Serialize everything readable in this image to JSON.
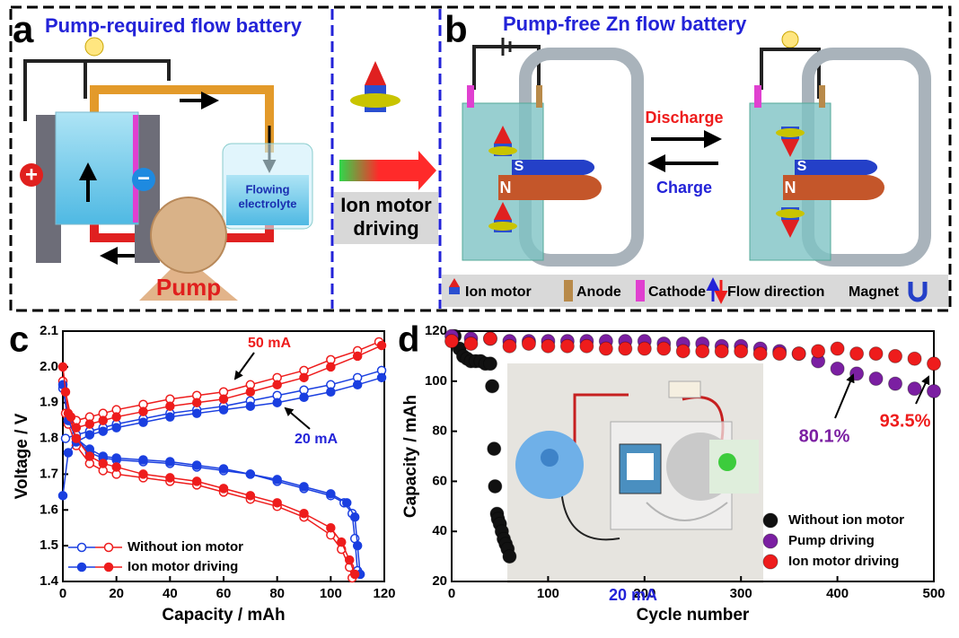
{
  "panel_a": {
    "label": "a",
    "title": "Pump-required flow battery",
    "electrolyte": [
      "Flowing",
      "electrolyte"
    ],
    "pump": "Pump",
    "plus": "+",
    "minus": "−"
  },
  "middle": {
    "lines": [
      "Ion motor",
      "driving"
    ]
  },
  "panel_b": {
    "label": "b",
    "title": "Pump-free Zn flow battery",
    "discharge": "Discharge",
    "charge": "Charge",
    "south": "S",
    "north": "N",
    "legend": [
      "Ion motor",
      "Anode",
      "Cathode",
      "Flow direction",
      "Magnet"
    ]
  },
  "chart_data": [
    {
      "type": "line",
      "panel": "c",
      "xlabel": "Capacity / mAh",
      "ylabel": "Voltage / V",
      "xlim": [
        0,
        120
      ],
      "xticks": [
        0,
        20,
        40,
        60,
        80,
        100,
        120
      ],
      "ylim": [
        1.4,
        2.1
      ],
      "yticks": [
        1.4,
        1.5,
        1.6,
        1.7,
        1.8,
        1.9,
        {
          "value": 2,
          "label": "2.0"
        },
        2.1
      ],
      "annotations": [
        "50 mA",
        "20 mA"
      ],
      "legend": "lower left",
      "series": [
        {
          "name": "Without ion motor",
          "marker": "open",
          "curves": [
            {
              "color": "#1a3fe0",
              "x": [
                1,
                5,
                10,
                15,
                20,
                30,
                40,
                50,
                60,
                70,
                80,
                90,
                100,
                110,
                119
              ],
              "values": [
                1.8,
                1.81,
                1.82,
                1.83,
                1.84,
                1.855,
                1.87,
                1.88,
                1.89,
                1.905,
                1.92,
                1.935,
                1.95,
                1.97,
                1.99
              ]
            },
            {
              "color": "#1a3fe0",
              "x": [
                0,
                2,
                5,
                10,
                15,
                20,
                30,
                40,
                50,
                60,
                70,
                80,
                90,
                100,
                105,
                108,
                109,
                110
              ],
              "values": [
                1.94,
                1.85,
                1.8,
                1.76,
                1.745,
                1.74,
                1.735,
                1.73,
                1.72,
                1.71,
                1.7,
                1.68,
                1.66,
                1.64,
                1.62,
                1.59,
                1.52,
                1.43
              ]
            },
            {
              "color": "#ee1c1c",
              "x": [
                1,
                5,
                10,
                15,
                20,
                30,
                40,
                50,
                60,
                70,
                80,
                90,
                100,
                110,
                118
              ],
              "values": [
                1.87,
                1.85,
                1.86,
                1.87,
                1.88,
                1.895,
                1.91,
                1.92,
                1.93,
                1.95,
                1.97,
                1.99,
                2.02,
                2.045,
                2.07
              ]
            },
            {
              "color": "#ee1c1c",
              "x": [
                0,
                2,
                5,
                10,
                15,
                20,
                30,
                40,
                50,
                60,
                70,
                80,
                90,
                100,
                104,
                107,
                108
              ],
              "values": [
                1.96,
                1.84,
                1.78,
                1.73,
                1.71,
                1.7,
                1.69,
                1.68,
                1.67,
                1.65,
                1.63,
                1.61,
                1.58,
                1.53,
                1.49,
                1.44,
                1.41
              ]
            }
          ]
        },
        {
          "name": "Ion motor driving",
          "marker": "filled",
          "curves": [
            {
              "color": "#1a3fe0",
              "x": [
                0,
                2,
                5,
                10,
                15,
                20,
                30,
                40,
                50,
                60,
                70,
                80,
                90,
                100,
                110,
                119
              ],
              "values": [
                1.64,
                1.76,
                1.79,
                1.81,
                1.82,
                1.83,
                1.845,
                1.86,
                1.87,
                1.88,
                1.89,
                1.9,
                1.915,
                1.93,
                1.95,
                1.97
              ]
            },
            {
              "color": "#1a3fe0",
              "x": [
                0,
                2,
                5,
                10,
                15,
                20,
                30,
                40,
                50,
                60,
                70,
                80,
                90,
                100,
                106,
                109,
                110,
                111
              ],
              "values": [
                1.95,
                1.85,
                1.8,
                1.77,
                1.75,
                1.745,
                1.74,
                1.735,
                1.725,
                1.715,
                1.7,
                1.685,
                1.665,
                1.645,
                1.62,
                1.58,
                1.5,
                1.42
              ]
            },
            {
              "color": "#ee1c1c",
              "x": [
                1,
                3,
                5,
                10,
                15,
                20,
                30,
                40,
                50,
                60,
                70,
                80,
                90,
                100,
                110,
                119
              ],
              "values": [
                1.93,
                1.86,
                1.83,
                1.84,
                1.85,
                1.86,
                1.875,
                1.89,
                1.9,
                1.91,
                1.93,
                1.95,
                1.97,
                2.0,
                2.03,
                2.06
              ]
            },
            {
              "color": "#ee1c1c",
              "x": [
                0,
                2,
                5,
                10,
                15,
                20,
                30,
                40,
                50,
                60,
                70,
                80,
                90,
                100,
                104,
                107,
                109
              ],
              "values": [
                2.0,
                1.87,
                1.8,
                1.75,
                1.73,
                1.72,
                1.7,
                1.69,
                1.68,
                1.66,
                1.64,
                1.62,
                1.59,
                1.55,
                1.51,
                1.46,
                1.42
              ]
            }
          ]
        }
      ]
    },
    {
      "type": "scatter",
      "panel": "d",
      "xlabel": "Cycle number",
      "ylabel": "Capacity / mAh",
      "xlim": [
        0,
        500
      ],
      "xticks": [
        0,
        100,
        200,
        300,
        400,
        500
      ],
      "ylim": [
        20,
        120
      ],
      "yticks": [
        20,
        40,
        60,
        80,
        100,
        120
      ],
      "annotations": [
        "80.1%",
        "93.5%",
        "20 mA"
      ],
      "legend": "lower right",
      "series": [
        {
          "name": "Without ion motor",
          "color": "#111111",
          "x": [
            3,
            8,
            12,
            16,
            20,
            25,
            30,
            35,
            40,
            42,
            44,
            45,
            47,
            48,
            50,
            52,
            54,
            56,
            58,
            60
          ],
          "values": [
            118,
            113,
            110,
            109,
            108,
            108,
            108,
            107,
            107,
            98,
            73,
            58,
            47,
            45,
            43,
            40,
            37,
            35,
            33,
            30
          ]
        },
        {
          "name": "Pump driving",
          "color": "#7b1fa2",
          "x": [
            0,
            20,
            40,
            60,
            80,
            100,
            120,
            140,
            160,
            180,
            200,
            220,
            240,
            260,
            280,
            300,
            320,
            340,
            360,
            380,
            400,
            420,
            440,
            460,
            480,
            500
          ],
          "values": [
            118,
            117,
            117,
            116,
            116,
            116,
            116,
            116,
            116,
            116,
            116,
            115,
            115,
            115,
            114,
            114,
            113,
            112,
            111,
            108,
            105,
            103,
            101,
            99,
            97,
            96
          ]
        },
        {
          "name": "Ion motor driving",
          "color": "#ee1c1c",
          "x": [
            0,
            20,
            40,
            60,
            80,
            100,
            120,
            140,
            160,
            180,
            200,
            220,
            240,
            260,
            280,
            300,
            320,
            340,
            360,
            380,
            400,
            420,
            440,
            460,
            480,
            500
          ],
          "values": [
            116,
            115,
            117,
            114,
            115,
            114,
            114,
            114,
            113,
            113,
            113,
            113,
            112,
            112,
            112,
            112,
            111,
            111,
            111,
            112,
            113,
            111,
            111,
            110,
            109,
            107
          ]
        }
      ]
    }
  ]
}
